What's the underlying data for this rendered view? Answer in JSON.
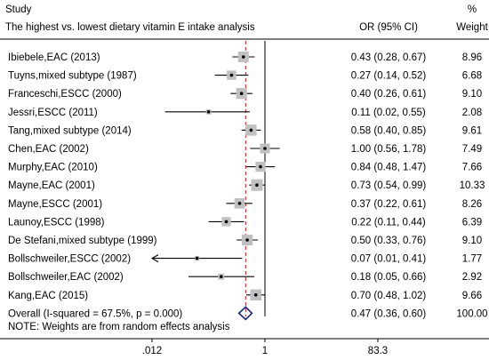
{
  "header": {
    "study_label": "Study",
    "analysis_title": "The highest vs. lowest dietary vitamin E intake analysis",
    "or_header": "OR (95% CI)",
    "pct_label": "%",
    "weight_label": "Weight"
  },
  "footer": {
    "note": "NOTE: Weights are from random effects analysis"
  },
  "colors": {
    "marker": "#000000",
    "box": "#c0c0c0",
    "null_line": "#000000",
    "overall_line": "#b22222",
    "diamond": "#1a237e"
  },
  "chart_data": {
    "type": "forest",
    "title": "The highest vs. lowest dietary vitamin E intake analysis",
    "xscale": "log",
    "xlim": [
      0.012,
      83.3
    ],
    "xticks": [
      {
        "value": 0.012,
        "label": ".012"
      },
      {
        "value": 1,
        "label": "1"
      },
      {
        "value": 83.3,
        "label": "83.3"
      }
    ],
    "null_value": 1,
    "studies": [
      {
        "label": "Ibiebele,EAC (2013)",
        "or": 0.43,
        "lo": 0.28,
        "hi": 0.67,
        "ci_text": "0.43 (0.28, 0.67)",
        "weight": 8.96,
        "weight_text": "8.96"
      },
      {
        "label": "Tuyns,mixed subtype (1987)",
        "or": 0.27,
        "lo": 0.14,
        "hi": 0.52,
        "ci_text": "0.27 (0.14, 0.52)",
        "weight": 6.68,
        "weight_text": "6.68"
      },
      {
        "label": "Franceschi,ESCC (2000)",
        "or": 0.4,
        "lo": 0.26,
        "hi": 0.61,
        "ci_text": "0.40 (0.26, 0.61)",
        "weight": 9.1,
        "weight_text": "9.10"
      },
      {
        "label": "Jessri,ESCC (2011)",
        "or": 0.11,
        "lo": 0.02,
        "hi": 0.55,
        "ci_text": "0.11 (0.02, 0.55)",
        "weight": 2.08,
        "weight_text": "2.08"
      },
      {
        "label": "Tang,mixed subtype (2014)",
        "or": 0.58,
        "lo": 0.4,
        "hi": 0.85,
        "ci_text": "0.58 (0.40, 0.85)",
        "weight": 9.61,
        "weight_text": "9.61"
      },
      {
        "label": "Chen,EAC (2002)",
        "or": 1.0,
        "lo": 0.56,
        "hi": 1.78,
        "ci_text": "1.00 (0.56, 1.78)",
        "weight": 7.49,
        "weight_text": "7.49"
      },
      {
        "label": "Murphy,EAC (2010)",
        "or": 0.84,
        "lo": 0.48,
        "hi": 1.47,
        "ci_text": "0.84 (0.48, 1.47)",
        "weight": 7.66,
        "weight_text": "7.66"
      },
      {
        "label": "Mayne,EAC (2001)",
        "or": 0.73,
        "lo": 0.54,
        "hi": 0.99,
        "ci_text": "0.73 (0.54, 0.99)",
        "weight": 10.33,
        "weight_text": "10.33"
      },
      {
        "label": "Mayne,ESCC (2001)",
        "or": 0.37,
        "lo": 0.22,
        "hi": 0.61,
        "ci_text": "0.37 (0.22, 0.61)",
        "weight": 8.26,
        "weight_text": "8.26"
      },
      {
        "label": "Launoy,ESCC (1998)",
        "or": 0.22,
        "lo": 0.11,
        "hi": 0.44,
        "ci_text": "0.22 (0.11, 0.44)",
        "weight": 6.39,
        "weight_text": "6.39"
      },
      {
        "label": "De Stefani,mixed subtype (1999)",
        "or": 0.5,
        "lo": 0.33,
        "hi": 0.76,
        "ci_text": "0.50 (0.33, 0.76)",
        "weight": 9.1,
        "weight_text": "9.10"
      },
      {
        "label": "Bollschweiler,ESCC (2002)",
        "or": 0.07,
        "lo": 0.01,
        "hi": 0.41,
        "ci_text": "0.07 (0.01, 0.41)",
        "weight": 1.77,
        "weight_text": "1.77"
      },
      {
        "label": "Bollschweiler,EAC (2002)",
        "or": 0.18,
        "lo": 0.05,
        "hi": 0.66,
        "ci_text": "0.18 (0.05, 0.66)",
        "weight": 2.92,
        "weight_text": "2.92"
      },
      {
        "label": "Kang,EAC (2015)",
        "or": 0.7,
        "lo": 0.48,
        "hi": 1.02,
        "ci_text": "0.70 (0.48, 1.02)",
        "weight": 9.66,
        "weight_text": "9.66"
      }
    ],
    "overall": {
      "label": "Overall  (I-squared = 67.5%, p = 0.000)",
      "or": 0.47,
      "lo": 0.36,
      "hi": 0.6,
      "ci_text": "0.47 (0.36, 0.60)",
      "weight_text": "100.00"
    }
  }
}
